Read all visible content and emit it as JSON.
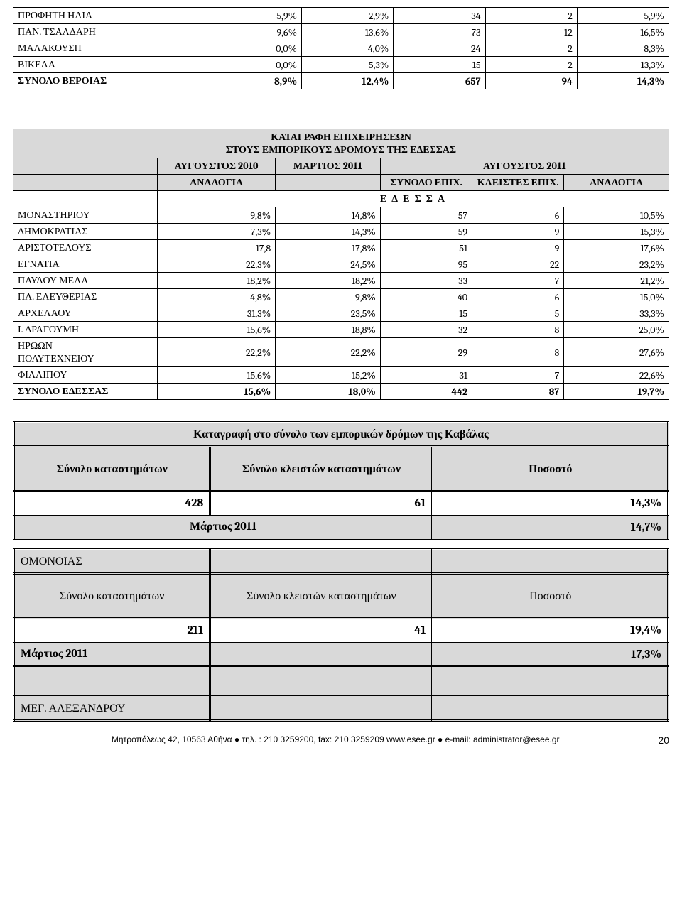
{
  "veroia_rows": [
    {
      "name": "ΠΡΟΦΗΤΗ ΗΛΙΑ",
      "a": "5,9%",
      "b": "2,9%",
      "c": "34",
      "d": "2",
      "e": "5,9%"
    },
    {
      "name": "ΠΑΝ. ΤΣΑΛΔΑΡΗ",
      "a": "9,6%",
      "b": "13,6%",
      "c": "73",
      "d": "12",
      "e": "16,5%"
    },
    {
      "name": "ΜΑΛΑΚΟΥΣΗ",
      "a": "0,0%",
      "b": "4,0%",
      "c": "24",
      "d": "2",
      "e": "8,3%"
    },
    {
      "name": "ΒΙΚΕΛΑ",
      "a": "0,0%",
      "b": "5,3%",
      "c": "15",
      "d": "2",
      "e": "13,3%"
    }
  ],
  "veroia_total": {
    "name": "ΣΥΝΟΛΟ ΒΕΡΟΙΑΣ",
    "a": "8,9%",
    "b": "12,4%",
    "c": "657",
    "d": "94",
    "e": "14,3%"
  },
  "edessa_banner_line1": "ΚΑΤΑΓΡΑΦΗ ΕΠΙΧΕΙΡΗΣΕΩΝ",
  "edessa_banner_line2": "ΣΤΟΥΣ ΕΜΠΟΡΙΚΟΥΣ ΔΡΟΜΟΥΣ ΤΗΣ  ΕΔΕΣΣΑΣ",
  "headers": {
    "aug2010": "ΑΥΓΟΥΣΤΟΣ 2010",
    "mar2011": "ΜΑΡΤΙΟΣ 2011",
    "aug2011": "ΑΥΓΟΥΣΤΟΣ 2011",
    "analogia": "ΑΝΑΛΟΓΙΑ",
    "synolo_epix": "ΣΥΝΟΛΟ ΕΠΙΧ.",
    "kleistes_epix": "ΚΛΕΙΣΤΕΣ ΕΠΙΧ.",
    "edessa_letters": "Ε Δ Ε Σ Σ Α"
  },
  "edessa_rows": [
    {
      "name": "ΜΟΝΑΣΤΗΡΙΟΥ",
      "a": "9,8%",
      "b": "14,8%",
      "c": "57",
      "d": "6",
      "e": "10,5%"
    },
    {
      "name": "ΔΗΜΟΚΡΑΤΙΑΣ",
      "a": "7,3%",
      "b": "14,3%",
      "c": "59",
      "d": "9",
      "e": "15,3%"
    },
    {
      "name": "ΑΡΙΣΤΟΤΕΛΟΥΣ",
      "a": "17,8",
      "b": "17,8%",
      "c": "51",
      "d": "9",
      "e": "17,6%"
    },
    {
      "name": "ΕΓΝΑΤΙΑ",
      "a": "22,3%",
      "b": "24,5%",
      "c": "95",
      "d": "22",
      "e": "23,2%"
    },
    {
      "name": "ΠΑΥΛΟΥ ΜΕΛΑ",
      "a": "18,2%",
      "b": "18,2%",
      "c": "33",
      "d": "7",
      "e": "21,2%"
    },
    {
      "name": "ΠΛ. ΕΛΕΥΘΕΡΙΑΣ",
      "a": "4,8%",
      "b": "9,8%",
      "c": "40",
      "d": "6",
      "e": "15,0%"
    },
    {
      "name": "ΑΡΧΕΛΑΟΥ",
      "a": "31,3%",
      "b": "23,5%",
      "c": "15",
      "d": "5",
      "e": "33,3%"
    },
    {
      "name": "Ι. ΔΡΑΓΟΥΜΗ",
      "a": "15,6%",
      "b": "18,8%",
      "c": "32",
      "d": "8",
      "e": "25,0%"
    },
    {
      "name": "ΗΡΩΩΝ ΠΟΛΥΤΕΧΝΕΙΟΥ",
      "a": "22,2%",
      "b": "22,2%",
      "c": "29",
      "d": "8",
      "e": "27,6%"
    },
    {
      "name": "ΦΙΛΛΙΠΟΥ",
      "a": "15,6%",
      "b": "15,2%",
      "c": "31",
      "d": "7",
      "e": "22,6%"
    }
  ],
  "edessa_total": {
    "name": "ΣΥΝΟΛΟ ΕΔΕΣΣΑΣ",
    "a": "15,6%",
    "b": "18,0%",
    "c": "442",
    "d": "87",
    "e": "19,7%"
  },
  "kavala": {
    "title": "Καταγραφή  στο σύνολο των εμπορικών δρόμων της Καβάλας",
    "col1": "Σύνολο καταστημάτων",
    "col2": "Σύνολο κλειστών καταστημάτων",
    "col3": "Ποσοστό",
    "v1": "428",
    "v2": "61",
    "v3": "14,3%",
    "march": "Μάρτιος  2011",
    "march_pct": "14,7%"
  },
  "omonoias": {
    "title": "ΟΜΟΝΟΙΑΣ",
    "col1": "Σύνολο καταστημάτων",
    "col2": "Σύνολο κλειστών καταστημάτων",
    "col3": "Ποσοστό",
    "v1": "211",
    "v2": "41",
    "v3": "19,4%",
    "march": "Μάρτιος  2011",
    "march_pct": "17,3%",
    "meg": "ΜΕΓ. ΑΛΕΞΑΝΔΡΟΥ"
  },
  "footer": "Μητροπόλεως 42,  10563  Αθήνα  ●  τηλ.  : 210 3259200,  fax: 210 3259209 www.esee.gr  ●  e-mail: administrator@esee.gr",
  "page": "20"
}
